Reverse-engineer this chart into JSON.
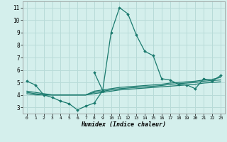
{
  "xlabel": "Humidex (Indice chaleur)",
  "background_color": "#d4efec",
  "grid_color": "#b8dbd8",
  "line_color": "#1a7a6e",
  "xlim": [
    -0.5,
    23.5
  ],
  "ylim": [
    2.5,
    11.5
  ],
  "xticks": [
    0,
    1,
    2,
    3,
    4,
    5,
    6,
    7,
    8,
    9,
    10,
    11,
    12,
    13,
    14,
    15,
    16,
    17,
    18,
    19,
    20,
    21,
    22,
    23
  ],
  "yticks": [
    3,
    4,
    5,
    6,
    7,
    8,
    9,
    10,
    11
  ],
  "lines": [
    {
      "x": [
        0,
        1,
        2,
        3,
        4,
        5,
        6,
        7,
        8,
        9,
        10,
        11,
        12,
        13,
        14,
        15,
        16,
        17,
        18,
        19,
        20,
        21,
        22,
        23
      ],
      "y": [
        5.1,
        4.8,
        4.0,
        3.8,
        3.5,
        3.3,
        2.8,
        3.1,
        3.35,
        4.35,
        9.0,
        11.0,
        10.5,
        8.8,
        7.5,
        7.15,
        5.3,
        5.2,
        4.85,
        4.8,
        4.5,
        5.3,
        5.1,
        5.55
      ],
      "marker": true
    },
    {
      "x": [
        0,
        1,
        2,
        3,
        4,
        5,
        6,
        7,
        8,
        9,
        10,
        11,
        12,
        13,
        14,
        15,
        16,
        17,
        18,
        19,
        20,
        21,
        22,
        23
      ],
      "y": [
        4.1,
        4.0,
        4.0,
        4.0,
        4.0,
        4.0,
        4.0,
        4.0,
        4.1,
        4.2,
        4.3,
        4.4,
        4.45,
        4.5,
        4.55,
        4.6,
        4.65,
        4.7,
        4.75,
        4.8,
        4.85,
        4.95,
        5.0,
        5.05
      ],
      "marker": false
    },
    {
      "x": [
        0,
        1,
        2,
        3,
        4,
        5,
        6,
        7,
        8,
        9,
        10,
        11,
        12,
        13,
        14,
        15,
        16,
        17,
        18,
        19,
        20,
        21,
        22,
        23
      ],
      "y": [
        4.2,
        4.1,
        4.0,
        4.0,
        4.0,
        4.0,
        4.0,
        4.0,
        4.2,
        4.3,
        4.4,
        4.5,
        4.55,
        4.6,
        4.65,
        4.7,
        4.75,
        4.85,
        4.9,
        4.95,
        5.0,
        5.1,
        5.15,
        5.2
      ],
      "marker": false
    },
    {
      "x": [
        0,
        1,
        2,
        3,
        4,
        5,
        6,
        7,
        8,
        9,
        10,
        11,
        12,
        13,
        14,
        15,
        16,
        17,
        18,
        19,
        20,
        21,
        22,
        23
      ],
      "y": [
        4.3,
        4.2,
        4.1,
        4.0,
        4.0,
        4.0,
        4.0,
        4.0,
        4.3,
        4.4,
        4.5,
        4.6,
        4.65,
        4.7,
        4.75,
        4.8,
        4.85,
        4.95,
        5.0,
        5.05,
        5.1,
        5.2,
        5.25,
        5.4
      ],
      "marker": false
    },
    {
      "x": [
        8,
        9
      ],
      "y": [
        5.8,
        4.35
      ],
      "marker": true
    }
  ]
}
